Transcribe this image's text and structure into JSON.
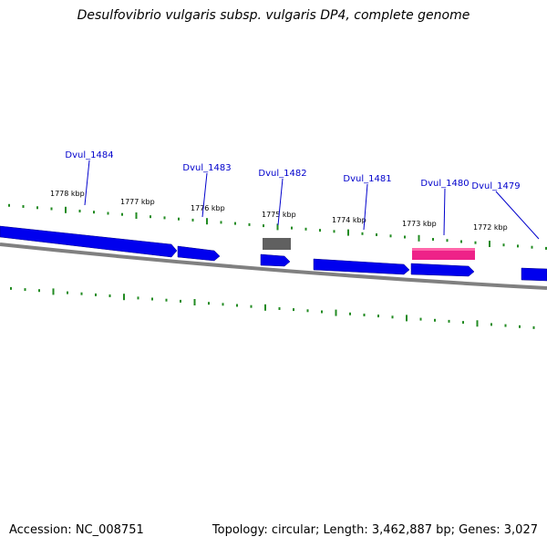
{
  "header": {
    "title": "Desulfovibrio vulgaris subsp. vulgaris DP4, complete genome"
  },
  "footer": {
    "accession": "Accession: NC_008751",
    "topology": "Topology: circular; Length: 3,462,887 bp; Genes: 3,027"
  },
  "colors": {
    "forward_gene": "#0000ee",
    "highlight_gene": "#ee2288",
    "other_gene": "#606060",
    "backbone": "#808080",
    "tick": "#228b22",
    "gene_label": "#0000cc"
  },
  "tick_labels": [
    "1778 kbp",
    "1777 kbp",
    "1776 kbp",
    "1775 kbp",
    "1774 kbp",
    "1773 kbp",
    "1772 kbp"
  ],
  "genes": [
    {
      "name": "Dvul_1484",
      "type": "forward"
    },
    {
      "name": "Dvul_1483",
      "type": "forward"
    },
    {
      "name": "Dvul_1482",
      "type": "other"
    },
    {
      "name": "Dvul_1481",
      "type": "forward"
    },
    {
      "name": "Dvul_1480",
      "type": "highlight"
    },
    {
      "name": "Dvul_1479",
      "type": "forward"
    }
  ]
}
